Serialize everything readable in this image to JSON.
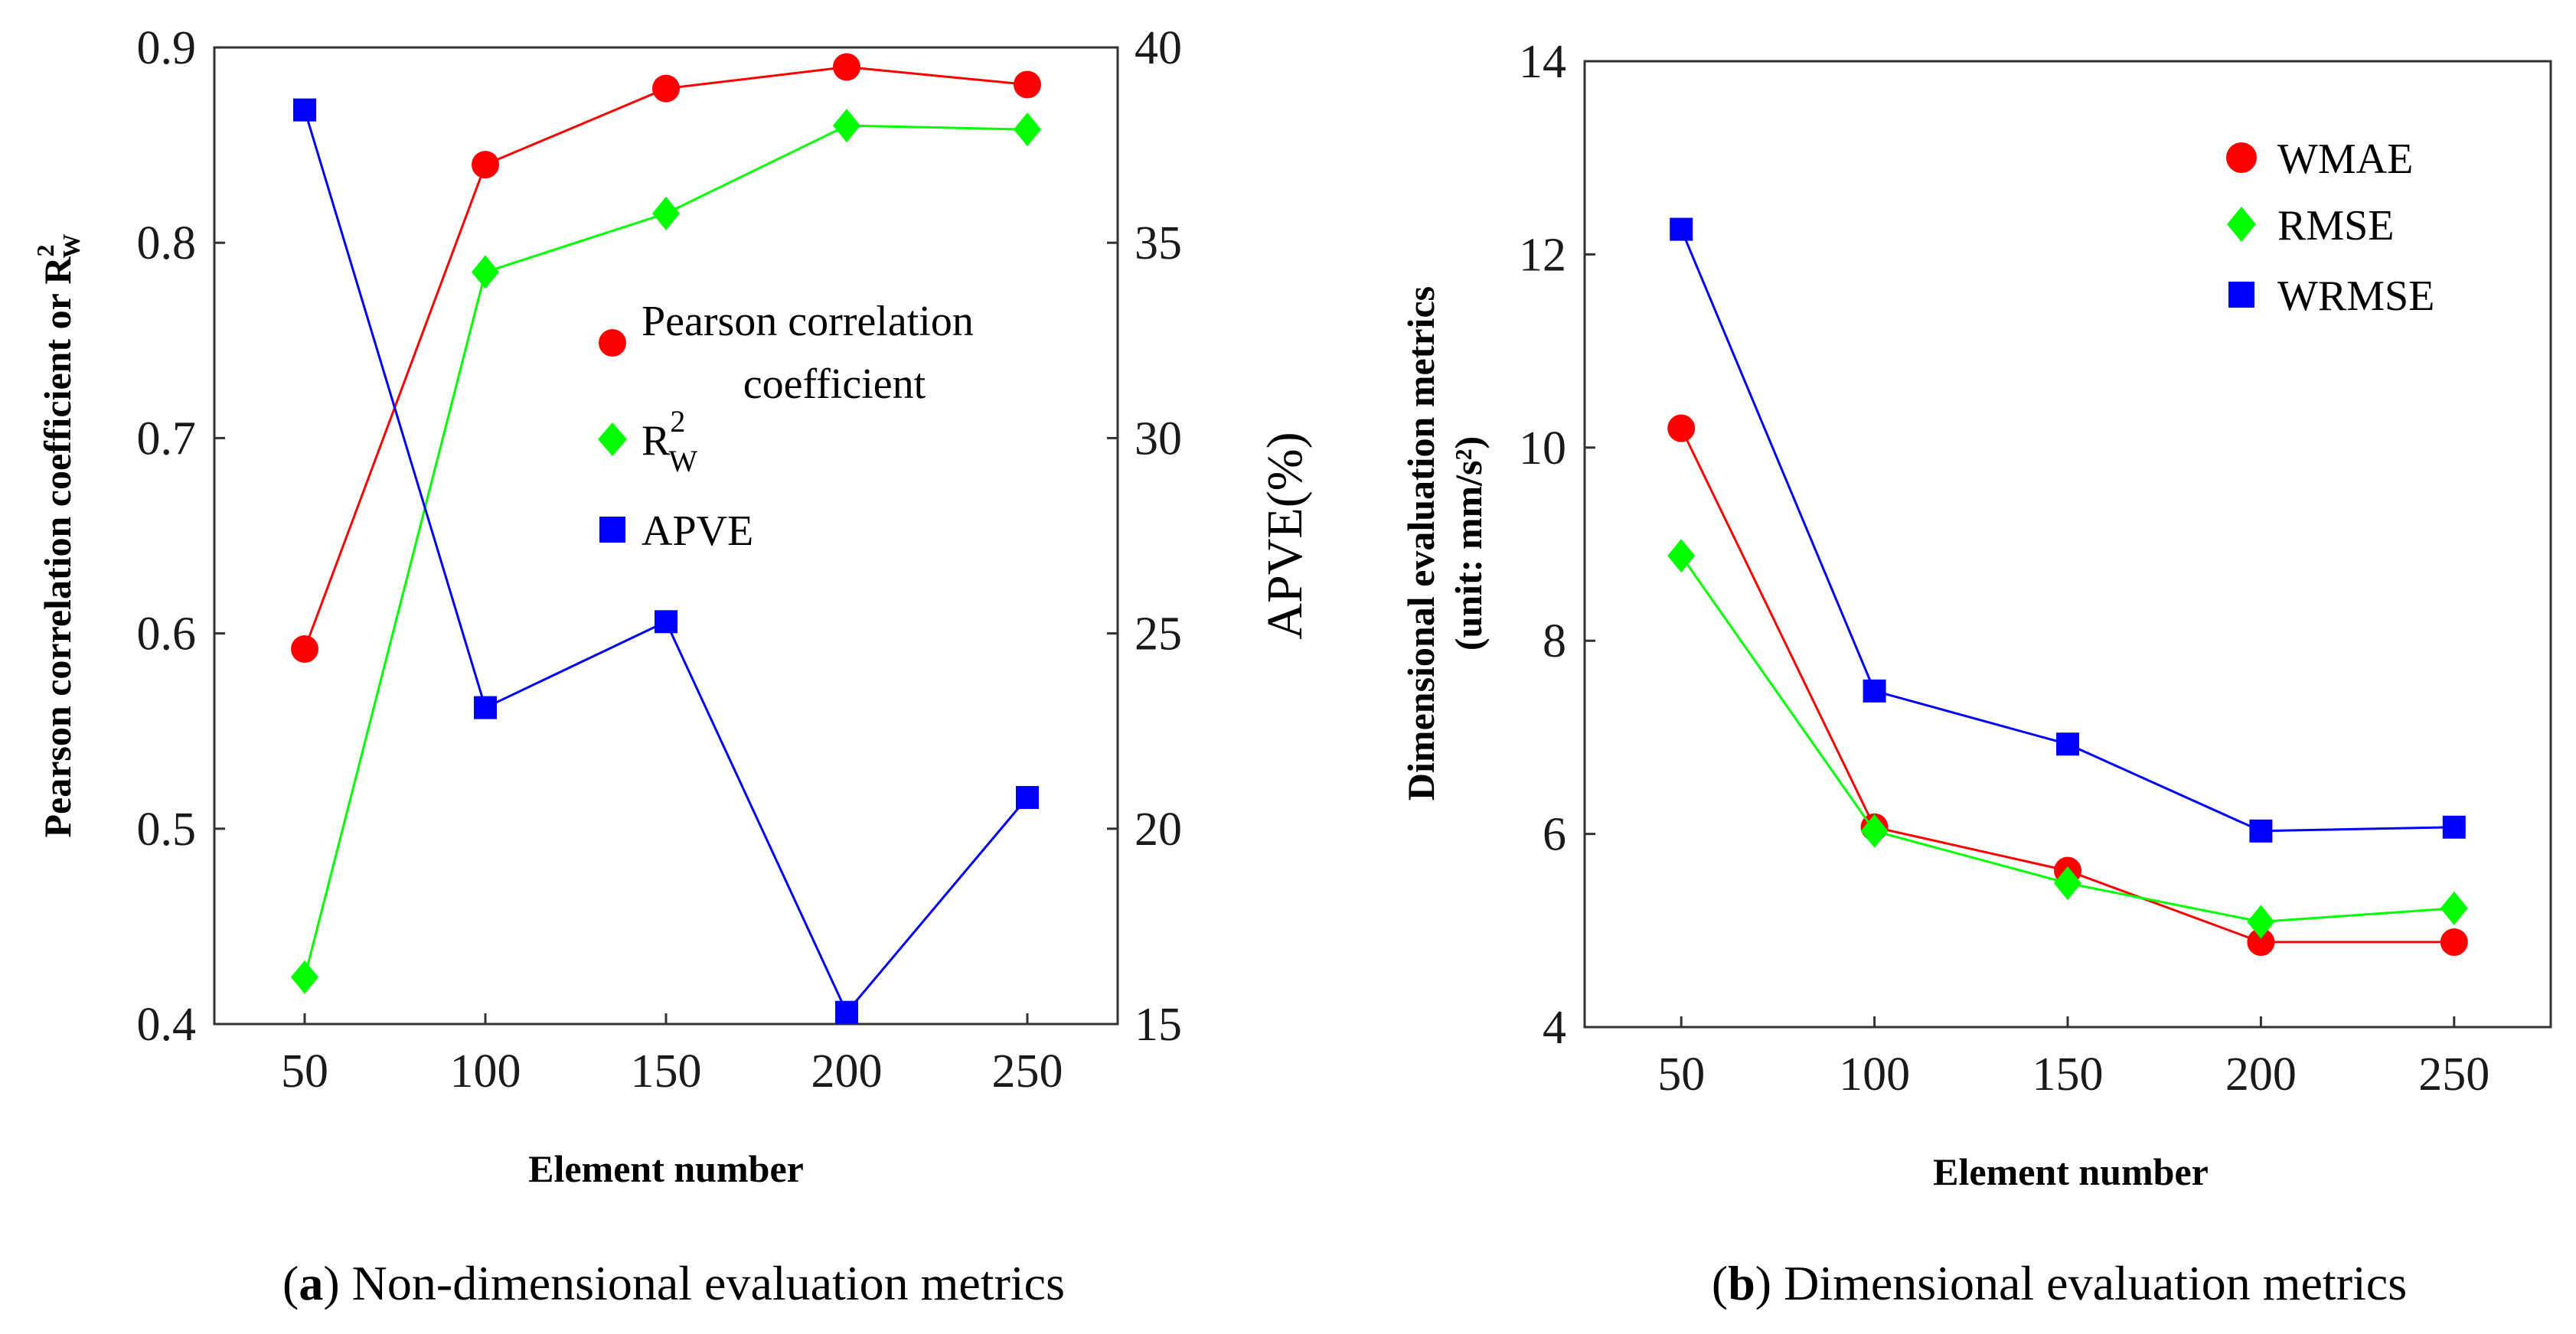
{
  "chart_data": [
    {
      "type": "line",
      "panel": "a",
      "caption_label": "a",
      "caption_text": "Non-dimensional evaluation metrics",
      "xlabel": "Element number",
      "ylabel": "Pearson correlation coefficient or R",
      "ylabel_sup": "2",
      "ylabel_sub": "W",
      "ylabel_right": "APVE(%)",
      "x": [
        50,
        100,
        150,
        200,
        250
      ],
      "xticks": [
        "50",
        "100",
        "150",
        "200",
        "250"
      ],
      "xlim": [
        25,
        275
      ],
      "ylim": [
        0.4,
        0.9
      ],
      "yticks": [
        "0.4",
        "0.5",
        "0.6",
        "0.7",
        "0.8",
        "0.9"
      ],
      "ylim_right": [
        15,
        40
      ],
      "yticks_right": [
        "15",
        "20",
        "25",
        "30",
        "35",
        "40"
      ],
      "series": [
        {
          "name": "Pearson correlation coefficient",
          "axis": "left",
          "color": "#ff0000",
          "marker": "circle",
          "values": [
            0.592,
            0.84,
            0.879,
            0.89,
            0.881
          ]
        },
        {
          "name": "R",
          "name_sup": "2",
          "name_sub": "W",
          "axis": "left",
          "color": "#00ff00",
          "marker": "diamond",
          "values": [
            0.424,
            0.785,
            0.815,
            0.86,
            0.858
          ]
        },
        {
          "name": "APVE",
          "axis": "right",
          "color": "#0000ff",
          "marker": "square",
          "values": [
            38.4,
            23.1,
            25.3,
            15.3,
            20.8
          ]
        }
      ],
      "legend": {
        "position": "center-right",
        "pearson_line1": "Pearson correlation",
        "pearson_line2": "coefficient"
      }
    },
    {
      "type": "line",
      "panel": "b",
      "caption_label": "b",
      "caption_text": "Dimensional evaluation metrics",
      "xlabel": "Element number",
      "ylabel": "Dimensional evaluation metrics",
      "ylabel_line2": "(unit: mm/s²)",
      "x": [
        50,
        100,
        150,
        200,
        250
      ],
      "xticks": [
        "50",
        "100",
        "150",
        "200",
        "250"
      ],
      "xlim": [
        25,
        275
      ],
      "ylim": [
        4,
        14
      ],
      "yticks": [
        "4",
        "6",
        "8",
        "10",
        "12",
        "14"
      ],
      "series": [
        {
          "name": "WMAE",
          "color": "#ff0000",
          "marker": "circle",
          "values": [
            10.2,
            6.07,
            5.62,
            4.88,
            4.88
          ]
        },
        {
          "name": "RMSE",
          "color": "#00ff00",
          "marker": "diamond",
          "values": [
            8.88,
            6.03,
            5.49,
            5.09,
            5.23
          ]
        },
        {
          "name": "WRMSE",
          "color": "#0000ff",
          "marker": "square",
          "values": [
            12.26,
            7.48,
            6.93,
            6.03,
            6.07
          ]
        }
      ],
      "legend": {
        "position": "top-right"
      }
    }
  ]
}
